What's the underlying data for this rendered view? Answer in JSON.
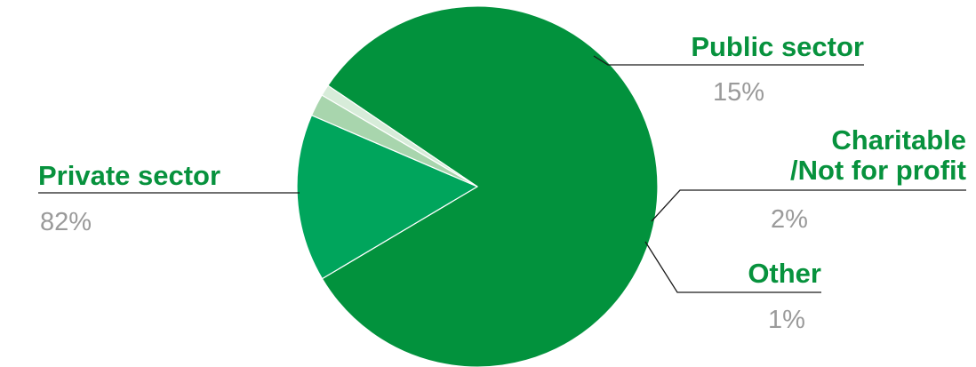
{
  "chart_data": {
    "type": "pie",
    "title": "",
    "categories": [
      "Private sector",
      "Public sector",
      "Charitable /Not for profit",
      "Other"
    ],
    "values": [
      82,
      15,
      2,
      1
    ],
    "slices": [
      {
        "name_lines": [
          "Private sector"
        ],
        "value_label": "82%",
        "value": 82,
        "color": "#02923d"
      },
      {
        "name_lines": [
          "Public sector"
        ],
        "value_label": "15%",
        "value": 15,
        "color": "#00a55c"
      },
      {
        "name_lines": [
          "Charitable",
          "/Not for profit"
        ],
        "value_label": "2%",
        "value": 2,
        "color": "#a8d5ad"
      },
      {
        "name_lines": [
          "Other"
        ],
        "value_label": "1%",
        "value": 1,
        "color": "#d7ecd9"
      }
    ],
    "label_color": "#07923d",
    "value_label_color": "#9a9a9a",
    "leader_color": "#1a1a1a",
    "legend": "none"
  }
}
